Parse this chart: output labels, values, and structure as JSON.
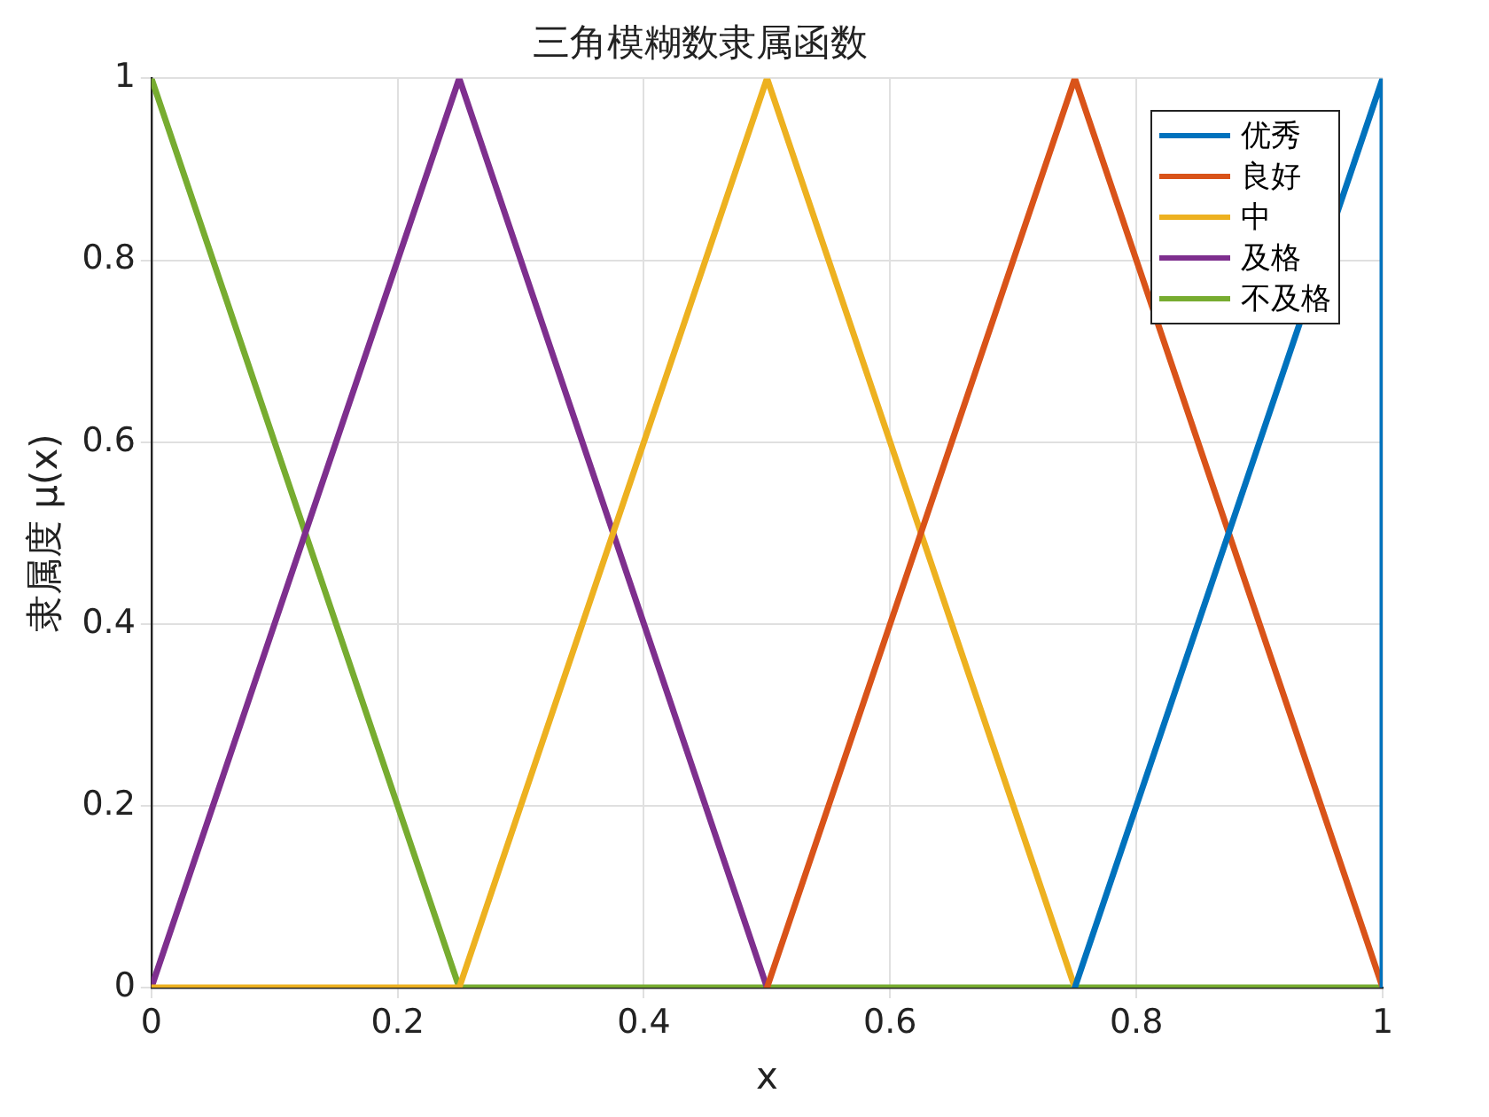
{
  "chart_data": {
    "type": "line",
    "title": "三角模糊数隶属函数",
    "xlabel": "x",
    "ylabel": "隶属度 μ(x)",
    "xlim": [
      0,
      1
    ],
    "xticks": [
      0,
      0.2,
      0.4,
      0.6,
      0.8,
      1
    ],
    "ylim": [
      0,
      1
    ],
    "yticks": [
      0,
      0.2,
      0.4,
      0.6,
      0.8,
      1
    ],
    "grid": true,
    "legend": "top right",
    "marker": "none",
    "line_style": "solid",
    "series": [
      {
        "name": "优秀",
        "color": "#0072bd",
        "x": [
          0.75,
          1,
          1
        ],
        "values": [
          0,
          1,
          0
        ]
      },
      {
        "name": "良好",
        "color": "#d95319",
        "x": [
          0.5,
          0.75,
          1
        ],
        "values": [
          0,
          1,
          0
        ]
      },
      {
        "name": "中",
        "color": "#edb120",
        "x": [
          0,
          0.25,
          0.5,
          0.75
        ],
        "values": [
          0,
          0,
          1,
          0
        ]
      },
      {
        "name": "及格",
        "color": "#7e2f8e",
        "x": [
          0,
          0.25,
          0.5
        ],
        "values": [
          0,
          1,
          0
        ]
      },
      {
        "name": "不及格",
        "color": "#77ac30",
        "x": [
          0,
          0.25,
          1
        ],
        "values": [
          1,
          0,
          0
        ]
      }
    ]
  }
}
